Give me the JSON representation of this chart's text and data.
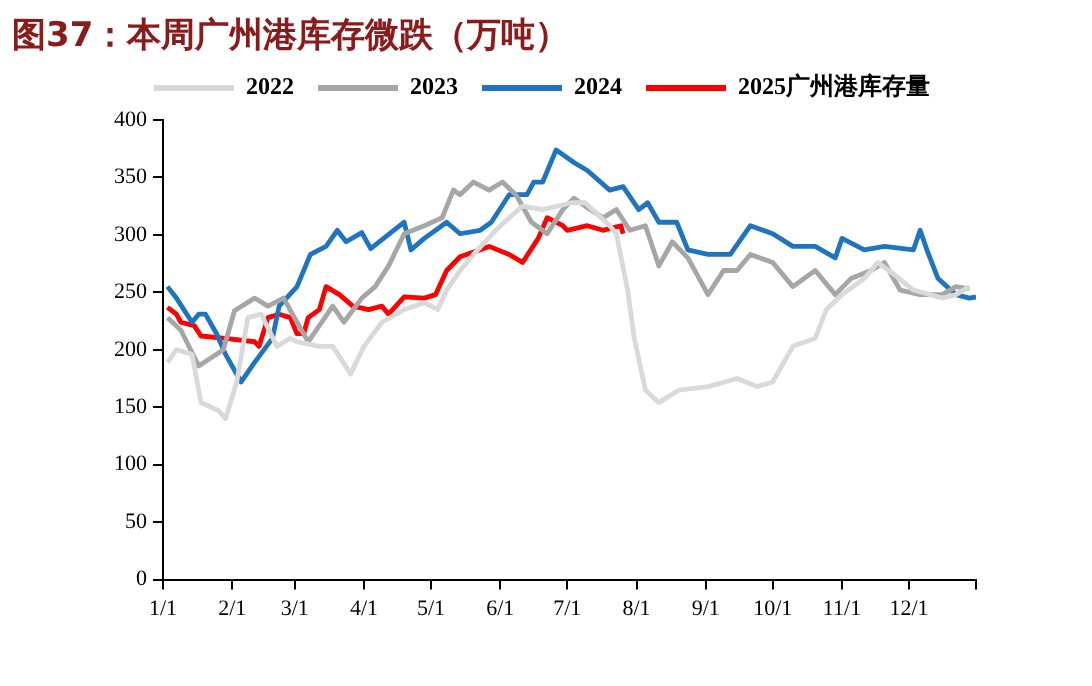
{
  "chart_data": {
    "type": "line",
    "title": "图37：本周广州港库存微跌（万吨）",
    "xlim": [
      "--01-01",
      "--12-31"
    ],
    "xticks": [
      {
        "value": "--01-01",
        "label": "1/1"
      },
      {
        "value": "--02-01",
        "label": "2/1"
      },
      {
        "value": "--03-01",
        "label": "3/1"
      },
      {
        "value": "--04-01",
        "label": "4/1"
      },
      {
        "value": "--05-01",
        "label": "5/1"
      },
      {
        "value": "--06-01",
        "label": "6/1"
      },
      {
        "value": "--07-01",
        "label": "7/1"
      },
      {
        "value": "--08-01",
        "label": "8/1"
      },
      {
        "value": "--09-01",
        "label": "9/1"
      },
      {
        "value": "--10-01",
        "label": "10/1"
      },
      {
        "value": "--11-01",
        "label": "11/1"
      },
      {
        "value": "--12-01",
        "label": "12/1"
      },
      {
        "value": "--12-31",
        "label": null
      }
    ],
    "ylim": [
      0,
      400
    ],
    "yticks": [
      0,
      50,
      100,
      150,
      200,
      250,
      300,
      350,
      400
    ],
    "grid": false,
    "legend": "top",
    "marker": "none",
    "line_style": "solid",
    "series": [
      {
        "name": "2022",
        "color": "#d9d9d9",
        "x": [
          "--01-03",
          "--01-07",
          "--01-14",
          "--01-18",
          "--01-26",
          "--01-29",
          "--02-03",
          "--02-08",
          "--02-14",
          "--02-21",
          "--02-27",
          "--03-02",
          "--03-12",
          "--03-18",
          "--03-26",
          "--04-01",
          "--04-09",
          "--04-19",
          "--04-28",
          "--05-04",
          "--05-08",
          "--05-14",
          "--05-20",
          "--05-30",
          "--06-05",
          "--06-11",
          "--06-20",
          "--07-03",
          "--07-09",
          "--07-20",
          "--07-23",
          "--07-28",
          "--07-31",
          "--08-05",
          "--08-11",
          "--08-20",
          "--09-02",
          "--09-15",
          "--09-24",
          "--10-01",
          "--10-10",
          "--10-20",
          "--10-25",
          "--11-01",
          "--11-11",
          "--11-17",
          "--11-24",
          "--12-03",
          "--12-16",
          "--12-22",
          "--12-28"
        ],
        "values": [
          189,
          200,
          196,
          154,
          147,
          140,
          172,
          228,
          231,
          203,
          210,
          207,
          203,
          203,
          179,
          203,
          224,
          235,
          241,
          235,
          252,
          269,
          283,
          304,
          315,
          325,
          322,
          328,
          328,
          308,
          301,
          252,
          210,
          165,
          154,
          165,
          168,
          175,
          168,
          172,
          203,
          210,
          235,
          248,
          262,
          276,
          266,
          252,
          245,
          248,
          255
        ]
      },
      {
        "name": "2023",
        "color": "#a6a6a6",
        "x": [
          "--01-03",
          "--01-09",
          "--01-17",
          "--01-28",
          "--02-02",
          "--02-11",
          "--02-17",
          "--02-24",
          "--03-02",
          "--03-07",
          "--03-12",
          "--03-18",
          "--03-23",
          "--03-31",
          "--04-06",
          "--04-12",
          "--04-19",
          "--04-28",
          "--05-06",
          "--05-11",
          "--05-14",
          "--05-20",
          "--05-27",
          "--06-02",
          "--06-08",
          "--06-15",
          "--06-22",
          "--06-29",
          "--07-04",
          "--07-09",
          "--07-17",
          "--07-23",
          "--07-29",
          "--08-05",
          "--08-11",
          "--08-17",
          "--08-24",
          "--09-02",
          "--09-09",
          "--09-15",
          "--09-21",
          "--10-01",
          "--10-10",
          "--10-20",
          "--10-29",
          "--11-05",
          "--11-14",
          "--11-20",
          "--11-27",
          "--12-06",
          "--12-16",
          "--12-22",
          "--12-28"
        ],
        "values": [
          228,
          217,
          186,
          200,
          234,
          245,
          238,
          245,
          224,
          207,
          221,
          238,
          224,
          245,
          255,
          273,
          301,
          308,
          315,
          339,
          335,
          346,
          339,
          346,
          335,
          311,
          301,
          322,
          332,
          325,
          315,
          322,
          304,
          308,
          273,
          294,
          280,
          248,
          269,
          269,
          283,
          276,
          255,
          269,
          248,
          262,
          269,
          276,
          252,
          248,
          248,
          255,
          253
        ]
      },
      {
        "name": "2024",
        "color": "#1f74c0",
        "x": [
          "--01-03",
          "--01-07",
          "--01-14",
          "--01-17",
          "--01-20",
          "--01-25",
          "--01-29",
          "--02-05",
          "--02-11",
          "--02-19",
          "--02-22",
          "--03-02",
          "--03-08",
          "--03-15",
          "--03-20",
          "--03-24",
          "--03-31",
          "--04-04",
          "--04-15",
          "--04-19",
          "--04-22",
          "--04-28",
          "--05-08",
          "--05-14",
          "--05-23",
          "--05-28",
          "--06-05",
          "--06-13",
          "--06-16",
          "--06-20",
          "--06-26",
          "--07-04",
          "--07-10",
          "--07-20",
          "--07-26",
          "--08-02",
          "--08-06",
          "--08-11",
          "--08-19",
          "--08-24",
          "--09-02",
          "--09-12",
          "--09-21",
          "--10-01",
          "--10-10",
          "--10-20",
          "--10-29",
          "--11-01",
          "--11-11",
          "--11-20",
          "--12-03",
          "--12-06",
          "--12-09",
          "--12-14",
          "--12-22",
          "--12-28",
          "--12-31"
        ],
        "values": [
          255,
          245,
          224,
          231,
          231,
          214,
          196,
          172,
          189,
          210,
          238,
          255,
          283,
          290,
          304,
          294,
          302,
          288,
          305,
          311,
          287,
          297,
          311,
          301,
          304,
          311,
          335,
          335,
          346,
          346,
          374,
          363,
          356,
          339,
          342,
          322,
          328,
          311,
          311,
          287,
          283,
          283,
          308,
          301,
          290,
          290,
          280,
          297,
          287,
          290,
          287,
          304,
          287,
          262,
          248,
          245,
          246
        ]
      },
      {
        "name": "2025广州港库存量",
        "color": "#ff0000",
        "x": [
          "--01-03",
          "--01-07",
          "--01-09",
          "--01-15",
          "--01-18",
          "--01-29",
          "--02-11",
          "--02-13",
          "--02-17",
          "--02-22",
          "--02-27",
          "--03-02",
          "--03-05",
          "--03-07",
          "--03-12",
          "--03-15",
          "--03-21",
          "--03-27",
          "--04-03",
          "--04-09",
          "--04-12",
          "--04-19",
          "--04-28",
          "--05-03",
          "--05-08",
          "--05-14",
          "--05-23",
          "--05-27",
          "--06-05",
          "--06-11",
          "--06-18",
          "--06-22",
          "--06-29",
          "--07-01",
          "--07-10",
          "--07-17",
          "--07-25",
          "--07-26"
        ],
        "values": [
          237,
          231,
          224,
          221,
          212,
          210,
          207,
          203,
          228,
          231,
          228,
          214,
          214,
          228,
          235,
          255,
          248,
          238,
          235,
          238,
          231,
          246,
          245,
          248,
          269,
          281,
          287,
          290,
          283,
          276,
          297,
          315,
          308,
          304,
          308,
          304,
          308,
          301
        ]
      }
    ]
  }
}
